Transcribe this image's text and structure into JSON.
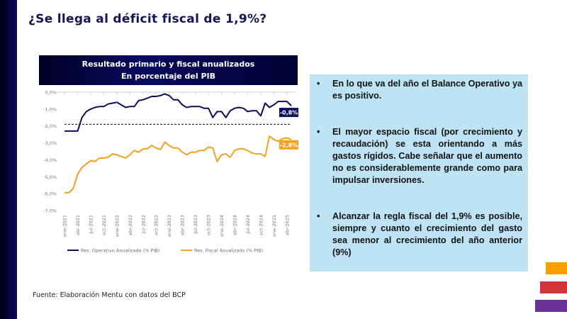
{
  "slide": {
    "title": "¿Se llega al déficit fiscal de 1,9%?",
    "source": "Fuente: Elaboración Mentu con datos del BCP"
  },
  "chart_header": {
    "line1": "Resultado primario y fiscal anualizados",
    "line2": "En porcentaje del PIB"
  },
  "bullets": [
    "En lo que va del año el Balance Operativo ya es positivo.",
    "El mayor espacio fiscal (por crecimiento y recaudación) se esta orientando a más gastos rígidos. Cabe señalar que el aumento no es considerablemente grande como para impulsar inversiones.",
    "Alcanzar la regla fiscal del 1,9% es posible, siempre y cuanto el crecimiento del gasto sea menor al crecimiento del año anterior (9%)"
  ],
  "colors": {
    "operativo": "#0d0d5c",
    "fiscal": "#f5a01f",
    "bullet_box": "#bde3f4",
    "title": "#14145a"
  },
  "chart_data": {
    "type": "line",
    "title": "Resultado primario y fiscal anualizados",
    "subtitle": "En porcentaje del PIB",
    "xlabel": "",
    "ylabel": "",
    "ylim": [
      -7.0,
      0.0
    ],
    "yticks": [
      "0,0%",
      "-1,0%",
      "-2,0%",
      "-3,0%",
      "-4,0%",
      "-5,0%",
      "-6,0%",
      "-7,0%"
    ],
    "ytick_values": [
      0,
      -1,
      -2,
      -3,
      -4,
      -5,
      -6,
      -7
    ],
    "xtick_labels": [
      "ene-2021",
      "abr-2021",
      "jul-2021",
      "oct-2021",
      "ene-2022",
      "abr-2022",
      "jul-2022",
      "oct-2022",
      "ene-2023",
      "abr-2023",
      "jul-2023",
      "oct-2023",
      "ene-2024",
      "abr-2024",
      "jul-2024",
      "oct-2024",
      "ene-2025",
      "abr-2025"
    ],
    "x_start": "ene-2021",
    "x_end": "may-2025",
    "frequency": "monthly",
    "grid": false,
    "legend_position": "bottom",
    "reference_line": {
      "value": -1.9,
      "style": "dashed"
    },
    "series": [
      {
        "name": "Res. Operativo Anualizado (% PIB)",
        "end_label": "-0,8%",
        "values": [
          -2.3,
          -2.3,
          -2.3,
          -2.3,
          -1.5,
          -1.15,
          -1.0,
          -0.9,
          -0.85,
          -0.85,
          -0.7,
          -0.65,
          -0.6,
          -0.75,
          -0.9,
          -0.85,
          -0.85,
          -0.5,
          -0.45,
          -0.35,
          -0.25,
          -0.25,
          -0.2,
          -0.1,
          -0.2,
          -0.45,
          -0.45,
          -0.75,
          -0.9,
          -0.85,
          -0.85,
          -0.85,
          -0.95,
          -0.95,
          -1.5,
          -1.15,
          -1.15,
          -1.5,
          -1.1,
          -0.95,
          -0.9,
          -0.95,
          -1.15,
          -1.1,
          -1.1,
          -1.4,
          -0.65,
          -0.9,
          -0.75,
          -0.55,
          -0.55,
          -0.55,
          -0.8
        ]
      },
      {
        "name": "Res. Fiscal Anualizado (% PIB)",
        "end_label": "-2,8%",
        "values": [
          -5.95,
          -5.95,
          -5.7,
          -4.85,
          -4.45,
          -4.25,
          -4.05,
          -4.1,
          -3.9,
          -3.9,
          -3.85,
          -3.65,
          -3.7,
          -3.8,
          -3.9,
          -3.7,
          -3.45,
          -3.55,
          -3.35,
          -3.35,
          -3.15,
          -3.3,
          -3.4,
          -2.95,
          -3.15,
          -3.3,
          -3.3,
          -3.55,
          -3.7,
          -3.55,
          -3.55,
          -3.45,
          -3.45,
          -3.25,
          -3.3,
          -4.1,
          -3.7,
          -3.65,
          -3.85,
          -3.45,
          -3.35,
          -3.35,
          -3.45,
          -3.6,
          -3.65,
          -3.65,
          -3.8,
          -2.6,
          -2.8,
          -2.9,
          -2.75,
          -2.7,
          -2.8
        ]
      }
    ]
  }
}
